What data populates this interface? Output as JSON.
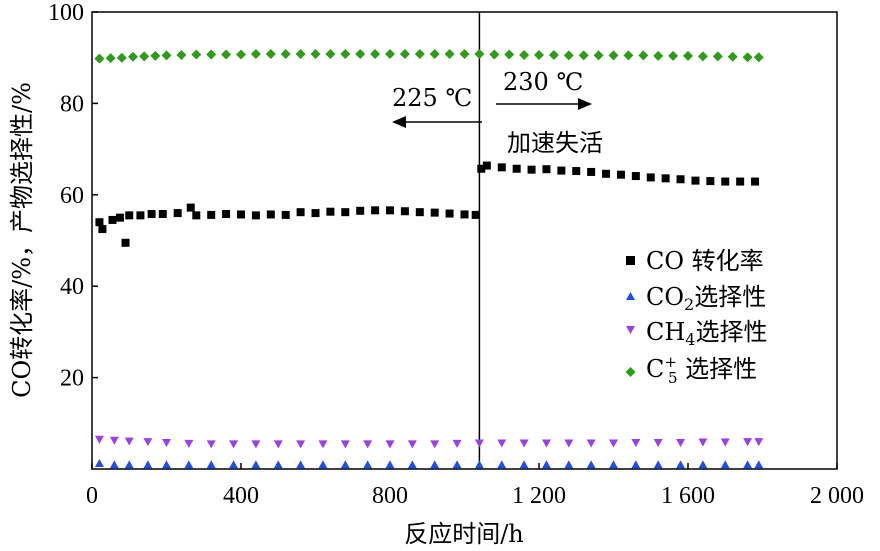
{
  "chart_data": {
    "type": "scatter",
    "xlabel": "反应时间/h",
    "ylabel": "CO转化率/%，产物选择性/%",
    "xlim": [
      0,
      2000
    ],
    "ylim": [
      0,
      100
    ],
    "x_ticks": [
      {
        "value": 0,
        "label": "0"
      },
      {
        "value": 400,
        "label": "400"
      },
      {
        "value": 800,
        "label": "800"
      },
      {
        "value": 1200,
        "label": "1 200"
      },
      {
        "value": 1600,
        "label": "1 600"
      },
      {
        "value": 2000,
        "label": "2 000"
      }
    ],
    "y_ticks": [
      {
        "value": 20,
        "label": "20"
      },
      {
        "value": 40,
        "label": "40"
      },
      {
        "value": 60,
        "label": "60"
      },
      {
        "value": 80,
        "label": "80"
      },
      {
        "value": 100,
        "label": "100"
      }
    ],
    "grid": false,
    "legend_position": "right-middle",
    "vertical_line_x": 1040,
    "annotations": {
      "left_temp": "225 ℃",
      "right_temp": "230 ℃",
      "deactivation": "加速失活"
    },
    "series": [
      {
        "name": "CO 转化率",
        "marker": "square",
        "color": "#000000",
        "points": [
          [
            20,
            54
          ],
          [
            28,
            52.5
          ],
          [
            55,
            54.5
          ],
          [
            75,
            55
          ],
          [
            90,
            49.5
          ],
          [
            100,
            55.5
          ],
          [
            130,
            55.5
          ],
          [
            160,
            55.8
          ],
          [
            190,
            55.8
          ],
          [
            230,
            56
          ],
          [
            265,
            57.2
          ],
          [
            280,
            55.5
          ],
          [
            320,
            55.6
          ],
          [
            360,
            55.8
          ],
          [
            400,
            55.7
          ],
          [
            440,
            55.5
          ],
          [
            480,
            55.7
          ],
          [
            520,
            55.6
          ],
          [
            560,
            56.2
          ],
          [
            600,
            56
          ],
          [
            640,
            56.3
          ],
          [
            680,
            56.2
          ],
          [
            720,
            56.5
          ],
          [
            760,
            56.6
          ],
          [
            800,
            56.6
          ],
          [
            840,
            56.4
          ],
          [
            880,
            56.2
          ],
          [
            920,
            56.1
          ],
          [
            960,
            55.9
          ],
          [
            1000,
            55.7
          ],
          [
            1030,
            55.6
          ],
          [
            1045,
            65.7
          ],
          [
            1060,
            66.4
          ],
          [
            1100,
            66
          ],
          [
            1140,
            65.7
          ],
          [
            1180,
            65.5
          ],
          [
            1220,
            65.6
          ],
          [
            1260,
            65.3
          ],
          [
            1300,
            65.2
          ],
          [
            1340,
            65
          ],
          [
            1380,
            64.6
          ],
          [
            1420,
            64.4
          ],
          [
            1460,
            64.1
          ],
          [
            1500,
            63.8
          ],
          [
            1540,
            63.6
          ],
          [
            1580,
            63.4
          ],
          [
            1620,
            63.1
          ],
          [
            1660,
            63
          ],
          [
            1700,
            62.9
          ],
          [
            1740,
            62.9
          ],
          [
            1780,
            62.9
          ]
        ]
      },
      {
        "name": "CO2选择性",
        "label_main": "CO",
        "label_sub": "2",
        "label_tail": "选择性",
        "marker": "triangle-up",
        "color": "#1f4fe0",
        "points": [
          [
            20,
            1.2
          ],
          [
            60,
            0.9
          ],
          [
            100,
            0.9
          ],
          [
            150,
            0.9
          ],
          [
            200,
            0.9
          ],
          [
            260,
            0.9
          ],
          [
            320,
            0.9
          ],
          [
            380,
            0.9
          ],
          [
            440,
            0.9
          ],
          [
            500,
            0.9
          ],
          [
            560,
            0.9
          ],
          [
            620,
            0.9
          ],
          [
            680,
            0.9
          ],
          [
            740,
            0.9
          ],
          [
            800,
            0.9
          ],
          [
            860,
            0.9
          ],
          [
            920,
            0.9
          ],
          [
            980,
            0.9
          ],
          [
            1040,
            0.9
          ],
          [
            1100,
            0.9
          ],
          [
            1160,
            0.9
          ],
          [
            1220,
            0.9
          ],
          [
            1280,
            0.9
          ],
          [
            1340,
            0.9
          ],
          [
            1400,
            0.9
          ],
          [
            1460,
            0.9
          ],
          [
            1520,
            0.9
          ],
          [
            1580,
            0.9
          ],
          [
            1640,
            0.9
          ],
          [
            1700,
            0.9
          ],
          [
            1760,
            0.9
          ],
          [
            1790,
            0.9
          ]
        ]
      },
      {
        "name": "CH4选择性",
        "label_main": "CH",
        "label_sub": "4",
        "label_tail": "选择性",
        "marker": "triangle-down",
        "color": "#9b3fe6",
        "points": [
          [
            20,
            6.5
          ],
          [
            60,
            6.3
          ],
          [
            100,
            6.1
          ],
          [
            150,
            6
          ],
          [
            200,
            5.8
          ],
          [
            260,
            5.6
          ],
          [
            320,
            5.5
          ],
          [
            380,
            5.5
          ],
          [
            440,
            5.5
          ],
          [
            500,
            5.5
          ],
          [
            560,
            5.5
          ],
          [
            620,
            5.5
          ],
          [
            680,
            5.5
          ],
          [
            740,
            5.5
          ],
          [
            800,
            5.5
          ],
          [
            860,
            5.5
          ],
          [
            920,
            5.5
          ],
          [
            980,
            5.6
          ],
          [
            1040,
            5.7
          ],
          [
            1100,
            5.7
          ],
          [
            1160,
            5.7
          ],
          [
            1220,
            5.7
          ],
          [
            1280,
            5.7
          ],
          [
            1340,
            5.7
          ],
          [
            1400,
            5.7
          ],
          [
            1460,
            5.8
          ],
          [
            1520,
            5.8
          ],
          [
            1580,
            5.8
          ],
          [
            1640,
            5.9
          ],
          [
            1700,
            5.9
          ],
          [
            1760,
            6
          ],
          [
            1790,
            6
          ]
        ]
      },
      {
        "name": "C5+ 选择性",
        "label_main": "C",
        "label_sub": "5",
        "label_sup": "+",
        "label_tail": " 选择性",
        "marker": "diamond",
        "color": "#2e9b1a",
        "points": [
          [
            20,
            89.8
          ],
          [
            50,
            89.9
          ],
          [
            80,
            90
          ],
          [
            110,
            90.2
          ],
          [
            140,
            90.3
          ],
          [
            170,
            90.4
          ],
          [
            200,
            90.5
          ],
          [
            240,
            90.6
          ],
          [
            280,
            90.7
          ],
          [
            320,
            90.7
          ],
          [
            360,
            90.7
          ],
          [
            400,
            90.7
          ],
          [
            440,
            90.8
          ],
          [
            480,
            90.8
          ],
          [
            520,
            90.8
          ],
          [
            560,
            90.8
          ],
          [
            600,
            90.8
          ],
          [
            640,
            90.8
          ],
          [
            680,
            90.8
          ],
          [
            720,
            90.8
          ],
          [
            760,
            90.8
          ],
          [
            800,
            90.8
          ],
          [
            840,
            90.8
          ],
          [
            880,
            90.8
          ],
          [
            920,
            90.8
          ],
          [
            960,
            90.8
          ],
          [
            1000,
            90.8
          ],
          [
            1040,
            90.8
          ],
          [
            1080,
            90.7
          ],
          [
            1120,
            90.7
          ],
          [
            1160,
            90.6
          ],
          [
            1200,
            90.6
          ],
          [
            1240,
            90.6
          ],
          [
            1280,
            90.5
          ],
          [
            1320,
            90.5
          ],
          [
            1360,
            90.5
          ],
          [
            1400,
            90.5
          ],
          [
            1440,
            90.5
          ],
          [
            1480,
            90.5
          ],
          [
            1520,
            90.4
          ],
          [
            1560,
            90.4
          ],
          [
            1600,
            90.4
          ],
          [
            1640,
            90.3
          ],
          [
            1680,
            90.3
          ],
          [
            1720,
            90.2
          ],
          [
            1760,
            90.1
          ],
          [
            1790,
            90.1
          ]
        ]
      }
    ]
  }
}
